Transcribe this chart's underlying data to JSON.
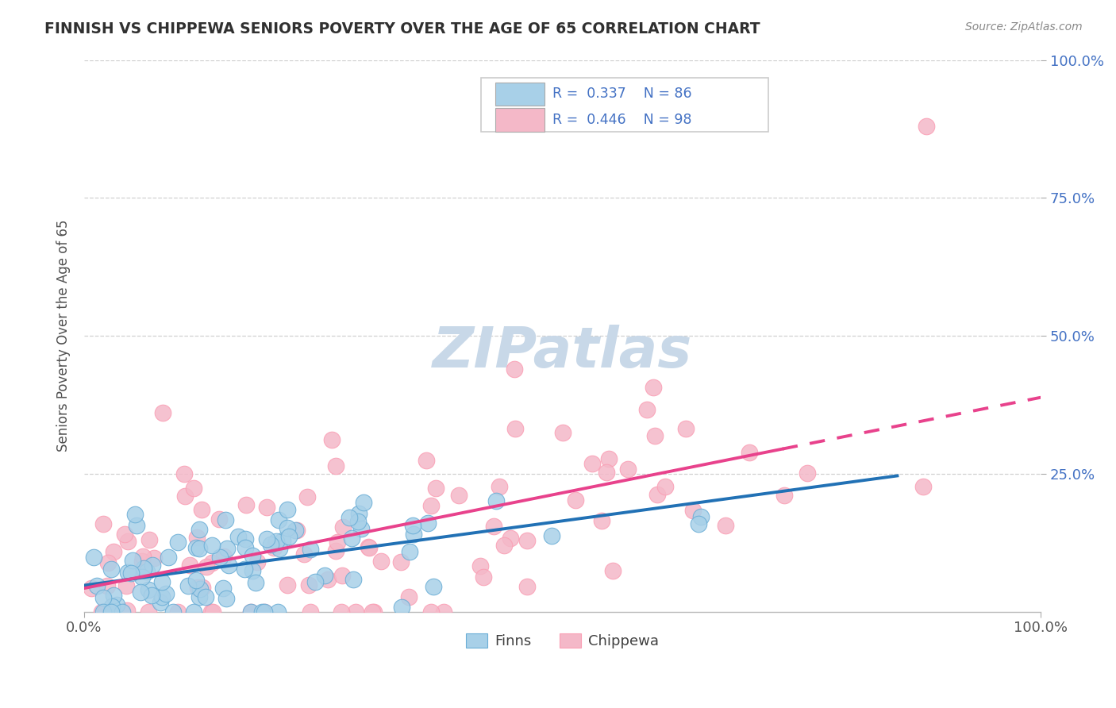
{
  "title": "FINNISH VS CHIPPEWA SENIORS POVERTY OVER THE AGE OF 65 CORRELATION CHART",
  "source_text": "Source: ZipAtlas.com",
  "ylabel": "Seniors Poverty Over the Age of 65",
  "finns_R": 0.337,
  "finns_N": 86,
  "chippewa_R": 0.446,
  "chippewa_N": 98,
  "finns_color": "#a8d0e8",
  "chippewa_color": "#f4b8c8",
  "finns_edge_color": "#6baed6",
  "chippewa_edge_color": "#fa9fb5",
  "finns_line_color": "#2171b5",
  "chippewa_line_color": "#e8428c",
  "background_color": "#ffffff",
  "grid_color": "#d0d0d0",
  "title_color": "#303030",
  "legend_R_color": "#4472c4",
  "watermark_color": "#c8d8e8",
  "source_color": "#888888"
}
